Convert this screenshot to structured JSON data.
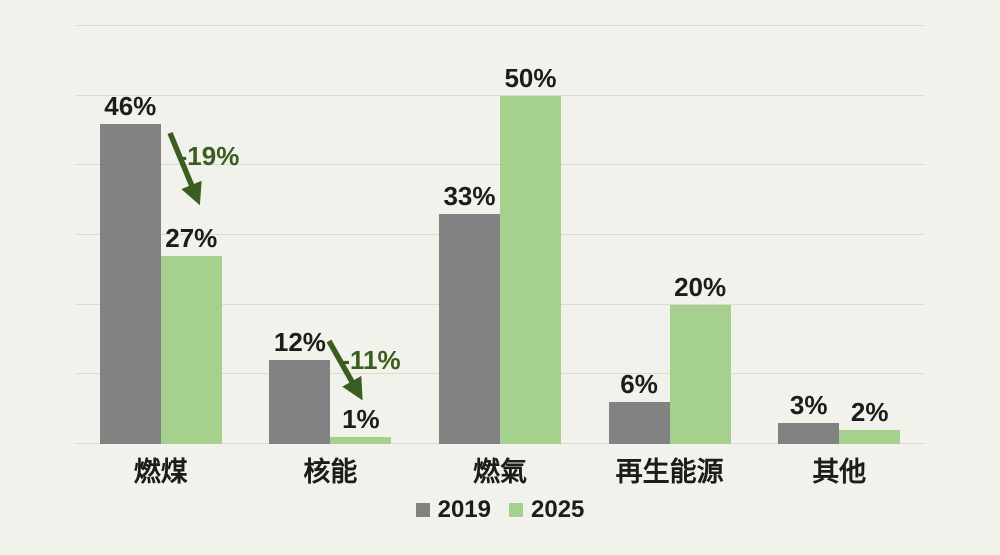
{
  "chart_data": {
    "type": "bar",
    "categories": [
      "燃煤",
      "核能",
      "燃氣",
      "再生能源",
      "其他"
    ],
    "series": [
      {
        "name": "2019",
        "color": "#828282",
        "values": [
          46,
          12,
          33,
          6,
          3
        ]
      },
      {
        "name": "2025",
        "color": "#a6d08d",
        "values": [
          27,
          1,
          50,
          20,
          2
        ]
      }
    ],
    "value_suffix": "%",
    "value_labels": [
      [
        "46%",
        "12%",
        "33%",
        "6%",
        "3%"
      ],
      [
        "27%",
        "1%",
        "50%",
        "20%",
        "2%"
      ]
    ],
    "title": "",
    "xlabel": "",
    "ylabel": "",
    "ylim": [
      0,
      60
    ],
    "gridline_step": 10,
    "grid": true,
    "legend_position": "bottom",
    "annotations": [
      {
        "text": "-19%",
        "category": "燃煤",
        "color": "#3b5e20"
      },
      {
        "text": "-11%",
        "category": "核能",
        "color": "#3b5e20"
      }
    ]
  },
  "colors": {
    "background": "#f1f2eb",
    "gridline": "#d9dccf",
    "text": "#1c1c1a",
    "arrow": "#3b5e20"
  }
}
